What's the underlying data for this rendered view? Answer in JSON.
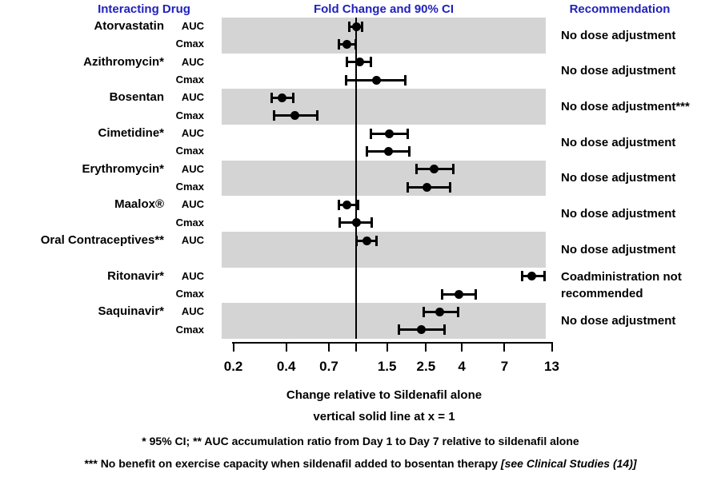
{
  "header": {
    "interacting_drug": "Interacting Drug",
    "fold_change": "Fold Change and 90% CI",
    "recommendation": "Recommendation"
  },
  "colors": {
    "header_blue": "#2121bd",
    "band_gray": "#d4d4d4",
    "marker_black": "#000000"
  },
  "chart_data": {
    "type": "forest",
    "x_scale": "log",
    "x_tick_labels": [
      "0.2",
      "0.4",
      "0.7",
      "1.5",
      "2.5",
      "4",
      "7",
      "13"
    ],
    "x_tick_values": [
      0.2,
      0.4,
      0.7,
      1.5,
      2.5,
      4,
      7,
      13
    ],
    "unlabeled_tick_value": 1,
    "reference_line_x": 1,
    "xlim": [
      0.2,
      13
    ],
    "captions": [
      "Change relative to Sildenafil alone",
      "vertical solid line at x = 1"
    ],
    "footnote1": "* 95% CI;  ** AUC accumulation ratio from Day 1 to Day 7 relative to sildenafil alone",
    "footnote2_text": "*** No benefit on exercise capacity when sildenafil added to bosentan therapy ",
    "footnote2_italic": "[see Clinical Studies (14)]",
    "groups": [
      {
        "drug": "Atorvastatin",
        "recommendation": "No dose adjustment",
        "rows": [
          {
            "metric": "AUC",
            "value": 1.0,
            "lo": 0.91,
            "hi": 1.08
          },
          {
            "metric": "Cmax",
            "value": 0.89,
            "lo": 0.8,
            "hi": 0.99
          }
        ]
      },
      {
        "drug": "Azithromycin*",
        "recommendation": "No dose adjustment",
        "rows": [
          {
            "metric": "AUC",
            "value": 1.05,
            "lo": 0.89,
            "hi": 1.22
          },
          {
            "metric": "Cmax",
            "value": 1.3,
            "lo": 0.88,
            "hi": 1.9
          }
        ]
      },
      {
        "drug": "Bosentan",
        "recommendation": "No dose adjustment***",
        "rows": [
          {
            "metric": "AUC",
            "value": 0.38,
            "lo": 0.33,
            "hi": 0.44
          },
          {
            "metric": "Cmax",
            "value": 0.45,
            "lo": 0.34,
            "hi": 0.6
          }
        ]
      },
      {
        "drug": "Cimetidine*",
        "recommendation": "No dose adjustment",
        "rows": [
          {
            "metric": "AUC",
            "value": 1.55,
            "lo": 1.22,
            "hi": 1.96
          },
          {
            "metric": "Cmax",
            "value": 1.53,
            "lo": 1.15,
            "hi": 2.0
          }
        ]
      },
      {
        "drug": "Erythromycin*",
        "recommendation": "No dose adjustment",
        "rows": [
          {
            "metric": "AUC",
            "value": 2.77,
            "lo": 2.2,
            "hi": 3.57
          },
          {
            "metric": "Cmax",
            "value": 2.54,
            "lo": 1.97,
            "hi": 3.43
          }
        ]
      },
      {
        "drug": "Maalox®",
        "recommendation": "No dose adjustment",
        "rows": [
          {
            "metric": "AUC",
            "value": 0.89,
            "lo": 0.8,
            "hi": 1.03
          },
          {
            "metric": "Cmax",
            "value": 1.0,
            "lo": 0.81,
            "hi": 1.23
          }
        ]
      },
      {
        "drug": "Oral Contraceptives**",
        "recommendation": "No dose adjustment",
        "rows": [
          {
            "metric": "AUC",
            "value": 1.15,
            "lo": 1.0,
            "hi": 1.31
          }
        ]
      },
      {
        "drug": "Ritonavir*",
        "recommendation": "Coadministration not recommended",
        "rows": [
          {
            "metric": "AUC",
            "value": 10.0,
            "lo": 8.8,
            "hi": 11.8
          },
          {
            "metric": "Cmax",
            "value": 3.85,
            "lo": 3.1,
            "hi": 4.8
          }
        ]
      },
      {
        "drug": "Saquinavir*",
        "recommendation": "No dose adjustment",
        "rows": [
          {
            "metric": "AUC",
            "value": 3.0,
            "lo": 2.43,
            "hi": 3.8
          },
          {
            "metric": "Cmax",
            "value": 2.35,
            "lo": 1.76,
            "hi": 3.2
          }
        ]
      }
    ]
  }
}
